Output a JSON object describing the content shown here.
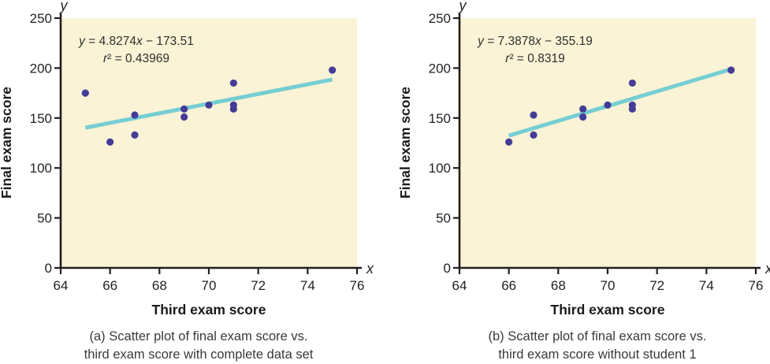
{
  "figure": {
    "colors": {
      "page_bg": "#ffffff",
      "plot_bg": "#faf3d6",
      "point": "#443c96",
      "trend_line": "#76ced3",
      "axis": "#231f20",
      "tick_label": "#231f20",
      "equation_text": "#2e2e2e",
      "axis_title": "#1a1a1a",
      "caption": "#3a3a3a"
    }
  },
  "chart_data": [
    {
      "type": "scatter",
      "panel": "a",
      "equation_line": "y = 4.8274x − 173.51",
      "r_squared_line": "r² = 0.43969",
      "slope": 4.8274,
      "intercept": -173.51,
      "trend_x_range": [
        65,
        75
      ],
      "points": [
        [
          65,
          175
        ],
        [
          66,
          126
        ],
        [
          67,
          133
        ],
        [
          67,
          153
        ],
        [
          69,
          151
        ],
        [
          69,
          159
        ],
        [
          70,
          163
        ],
        [
          71,
          159
        ],
        [
          71,
          163
        ],
        [
          71,
          185
        ],
        [
          75,
          198
        ]
      ],
      "xlim": [
        64,
        76
      ],
      "ylim": [
        0,
        250
      ],
      "xticks": [
        64,
        66,
        68,
        70,
        72,
        74,
        76
      ],
      "yticks": [
        0,
        50,
        100,
        150,
        200,
        250
      ],
      "xlabel": "Third exam score",
      "ylabel": "Final exam score",
      "x_axis_letter": "x",
      "y_axis_letter": "y",
      "caption": [
        "(a) Scatter plot of final exam score vs.",
        "third exam score with complete data set"
      ],
      "grid": false,
      "legend": "none"
    },
    {
      "type": "scatter",
      "panel": "b",
      "equation_line": "y = 7.3878x − 355.19",
      "r_squared_line": "r² = 0.8319",
      "slope": 7.3878,
      "intercept": -355.19,
      "trend_x_range": [
        66,
        75
      ],
      "points": [
        [
          66,
          126
        ],
        [
          67,
          133
        ],
        [
          67,
          153
        ],
        [
          69,
          151
        ],
        [
          69,
          159
        ],
        [
          70,
          163
        ],
        [
          71,
          159
        ],
        [
          71,
          163
        ],
        [
          71,
          185
        ],
        [
          75,
          198
        ]
      ],
      "xlim": [
        64,
        76
      ],
      "ylim": [
        0,
        250
      ],
      "xticks": [
        64,
        66,
        68,
        70,
        72,
        74,
        76
      ],
      "yticks": [
        0,
        50,
        100,
        150,
        200,
        250
      ],
      "xlabel": "Third exam score",
      "ylabel": "Final exam score",
      "x_axis_letter": "x",
      "y_axis_letter": "y",
      "caption": [
        "(b) Scatter plot of final exam score vs.",
        "third exam score without student 1"
      ],
      "grid": false,
      "legend": "none"
    }
  ]
}
